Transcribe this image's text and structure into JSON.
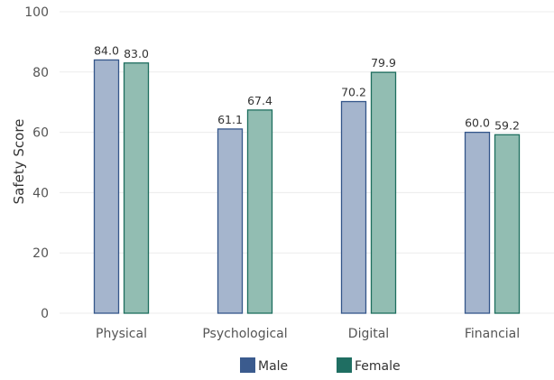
{
  "chart_data": {
    "type": "bar",
    "title": "",
    "xlabel": "",
    "ylabel": "Safety Score",
    "ylim": [
      0,
      100
    ],
    "yticks": [
      0,
      20,
      40,
      60,
      80,
      100
    ],
    "grid": true,
    "legend_position": "bottom-center",
    "categories": [
      "Physical",
      "Psychological",
      "Digital",
      "Financial"
    ],
    "series": [
      {
        "name": "Male",
        "values": [
          84.0,
          61.1,
          70.2,
          60.0
        ],
        "fill": "#a5b5cd",
        "stroke": "#34568a",
        "legend_color": "#3b5b8e"
      },
      {
        "name": "Female",
        "values": [
          83.0,
          67.4,
          79.9,
          59.2
        ],
        "fill": "#92bdb2",
        "stroke": "#1d6e5e",
        "legend_color": "#1f6e62"
      }
    ]
  }
}
